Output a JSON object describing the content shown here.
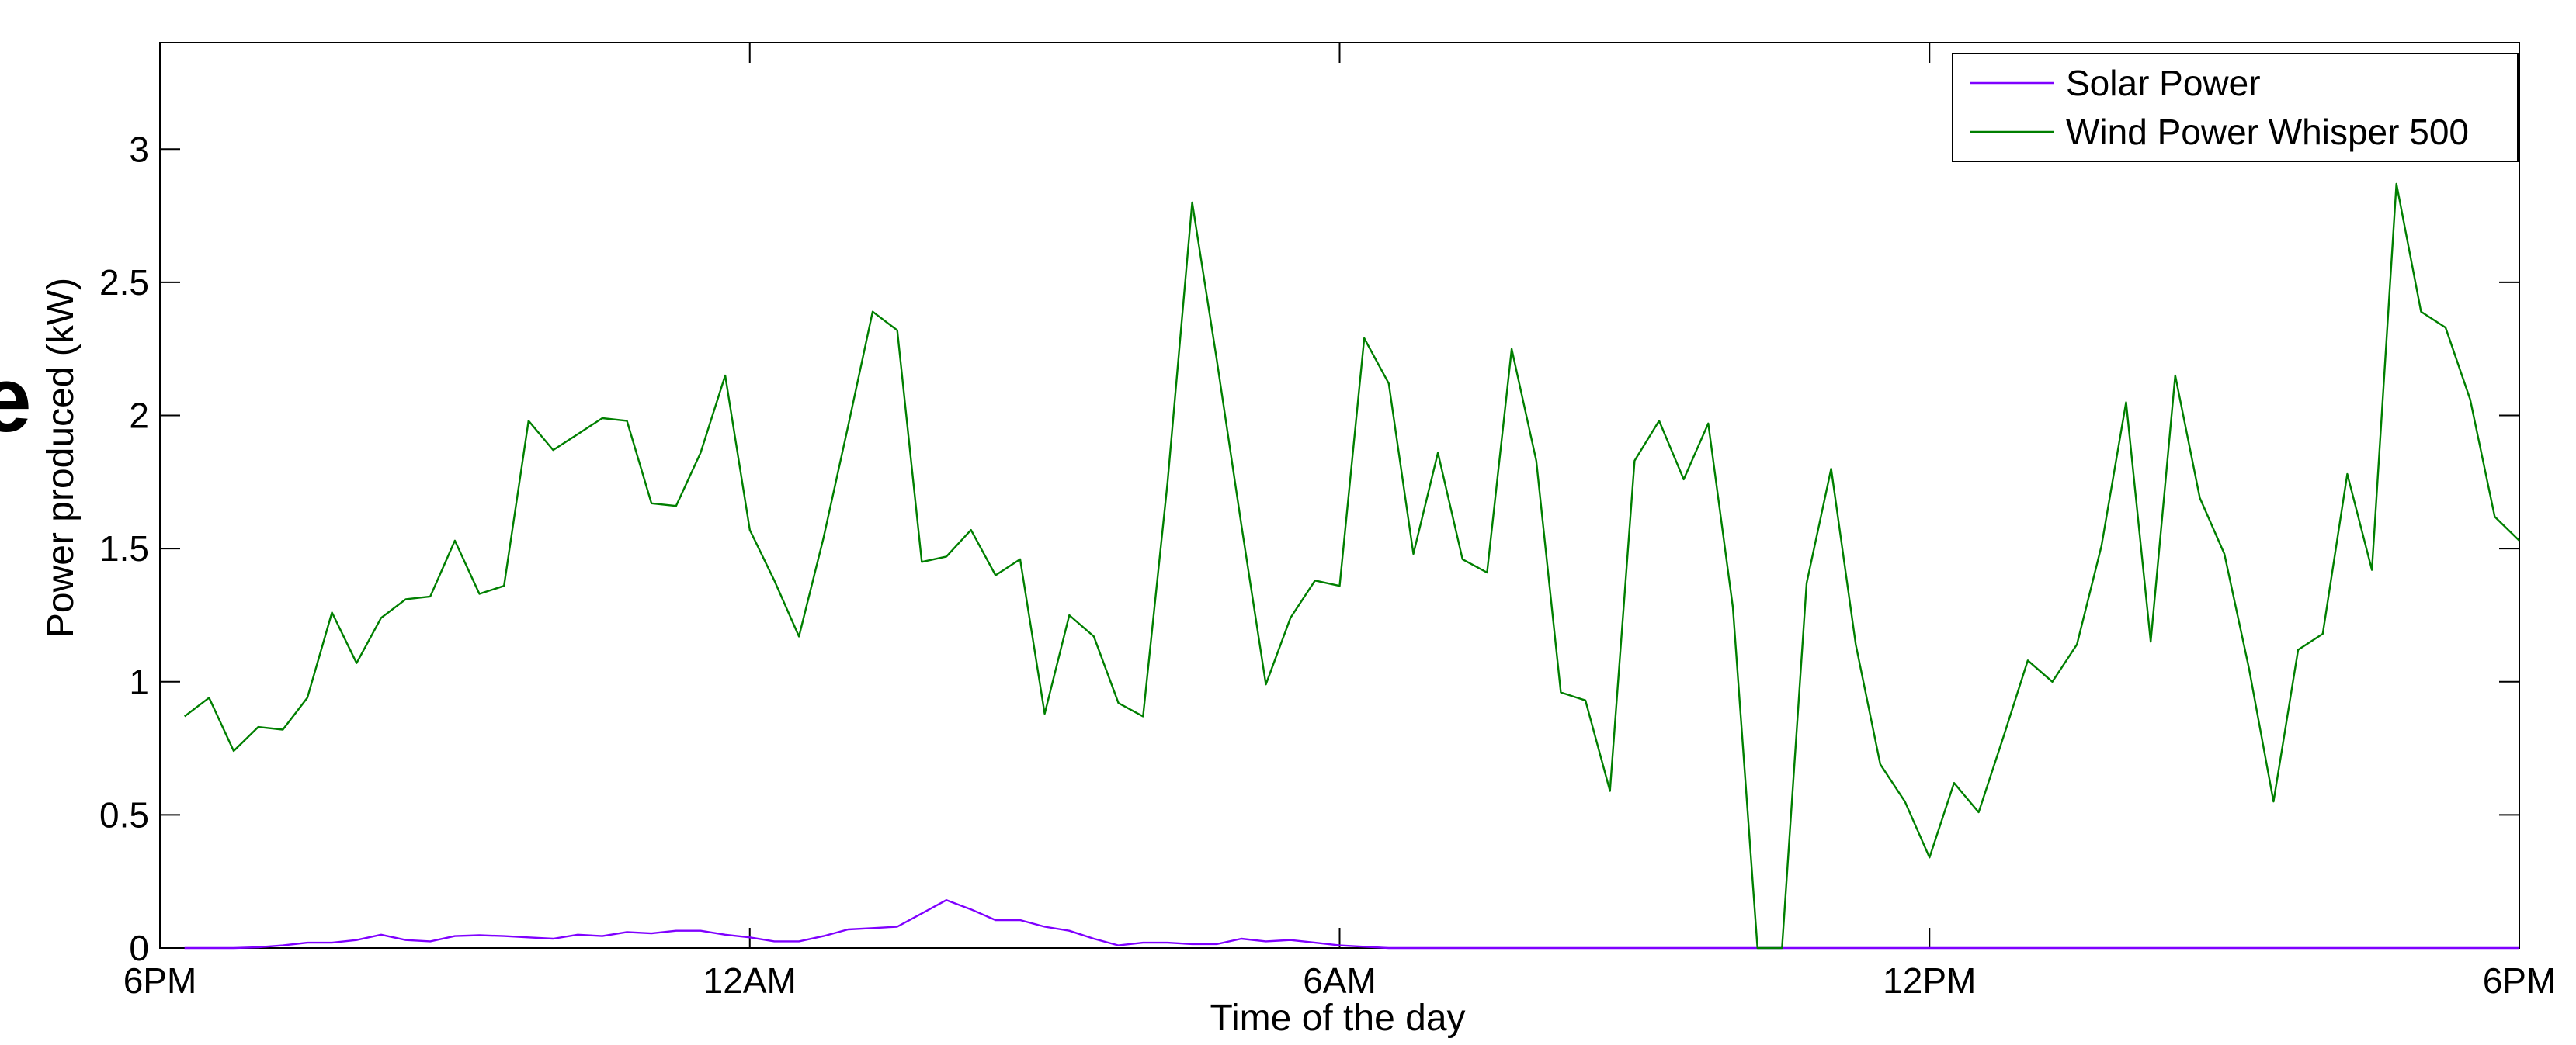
{
  "edge_text": "e",
  "chart_data": {
    "type": "line",
    "title": "",
    "xlabel": "Time of the day",
    "ylabel": "Power produced (kW)",
    "xlim": [
      0,
      96
    ],
    "ylim": [
      0,
      3.4
    ],
    "x_ticks": [
      {
        "value": 0,
        "label": "6PM"
      },
      {
        "value": 24,
        "label": "12AM"
      },
      {
        "value": 48,
        "label": "6AM"
      },
      {
        "value": 72,
        "label": "12PM"
      },
      {
        "value": 96,
        "label": "6PM"
      }
    ],
    "y_ticks": [
      {
        "value": 0,
        "label": "0"
      },
      {
        "value": 0.5,
        "label": "0.5"
      },
      {
        "value": 1,
        "label": "1"
      },
      {
        "value": 1.5,
        "label": "1.5"
      },
      {
        "value": 2,
        "label": "2"
      },
      {
        "value": 2.5,
        "label": "2.5"
      },
      {
        "value": 3,
        "label": "3"
      }
    ],
    "grid": false,
    "legend_position": "top-right",
    "series": [
      {
        "name": "Solar Power",
        "color": "#7f00ff",
        "values": [
          [
            1,
            0
          ],
          [
            2,
            0
          ],
          [
            3,
            0
          ],
          [
            4,
            0.003
          ],
          [
            5,
            0.01
          ],
          [
            6,
            0.02
          ],
          [
            7,
            0.02
          ],
          [
            8,
            0.03
          ],
          [
            9,
            0.05
          ],
          [
            10,
            0.03
          ],
          [
            11,
            0.025
          ],
          [
            12,
            0.045
          ],
          [
            13,
            0.048
          ],
          [
            14,
            0.045
          ],
          [
            15,
            0.04
          ],
          [
            16,
            0.035
          ],
          [
            17,
            0.05
          ],
          [
            18,
            0.045
          ],
          [
            19,
            0.06
          ],
          [
            20,
            0.055
          ],
          [
            21,
            0.065
          ],
          [
            22,
            0.065
          ],
          [
            23,
            0.05
          ],
          [
            24,
            0.04
          ],
          [
            25,
            0.025
          ],
          [
            26,
            0.025
          ],
          [
            27,
            0.045
          ],
          [
            28,
            0.07
          ],
          [
            29,
            0.075
          ],
          [
            30,
            0.08
          ],
          [
            31,
            0.13
          ],
          [
            32,
            0.18
          ],
          [
            33,
            0.145
          ],
          [
            34,
            0.105
          ],
          [
            35,
            0.105
          ],
          [
            36,
            0.08
          ],
          [
            37,
            0.065
          ],
          [
            38,
            0.035
          ],
          [
            39,
            0.01
          ],
          [
            40,
            0.02
          ],
          [
            41,
            0.02
          ],
          [
            42,
            0.015
          ],
          [
            43,
            0.015
          ],
          [
            44,
            0.035
          ],
          [
            45,
            0.025
          ],
          [
            46,
            0.03
          ],
          [
            47,
            0.02
          ],
          [
            48,
            0.01
          ],
          [
            49,
            0.005
          ],
          [
            50,
            0
          ],
          [
            52,
            0
          ],
          [
            56,
            0
          ],
          [
            60,
            0
          ],
          [
            64,
            0
          ],
          [
            68,
            0
          ],
          [
            72,
            0
          ],
          [
            76,
            0
          ],
          [
            80,
            0
          ],
          [
            84,
            0
          ],
          [
            88,
            0
          ],
          [
            92,
            0
          ],
          [
            96,
            0
          ]
        ]
      },
      {
        "name": "Wind Power Whisper 500",
        "color": "#007f00",
        "values": [
          [
            1,
            0.87
          ],
          [
            2,
            0.94
          ],
          [
            3,
            0.74
          ],
          [
            4,
            0.83
          ],
          [
            5,
            0.82
          ],
          [
            6,
            0.94
          ],
          [
            7,
            1.26
          ],
          [
            8,
            1.07
          ],
          [
            9,
            1.24
          ],
          [
            10,
            1.31
          ],
          [
            11,
            1.32
          ],
          [
            12,
            1.53
          ],
          [
            13,
            1.33
          ],
          [
            14,
            1.36
          ],
          [
            15,
            1.98
          ],
          [
            16,
            1.87
          ],
          [
            17,
            1.93
          ],
          [
            18,
            1.99
          ],
          [
            19,
            1.98
          ],
          [
            20,
            1.67
          ],
          [
            21,
            1.66
          ],
          [
            22,
            1.86
          ],
          [
            23,
            2.15
          ],
          [
            24,
            1.57
          ],
          [
            25,
            1.38
          ],
          [
            26,
            1.17
          ],
          [
            27,
            1.54
          ],
          [
            28,
            1.96
          ],
          [
            29,
            2.39
          ],
          [
            30,
            2.32
          ],
          [
            31,
            1.45
          ],
          [
            32,
            1.47
          ],
          [
            33,
            1.57
          ],
          [
            34,
            1.4
          ],
          [
            35,
            1.46
          ],
          [
            36,
            0.88
          ],
          [
            37,
            1.25
          ],
          [
            38,
            1.17
          ],
          [
            39,
            0.92
          ],
          [
            40,
            0.87
          ],
          [
            41,
            1.75
          ],
          [
            42,
            2.8
          ],
          [
            43,
            2.21
          ],
          [
            44,
            1.59
          ],
          [
            45,
            0.99
          ],
          [
            46,
            1.24
          ],
          [
            47,
            1.38
          ],
          [
            48,
            1.36
          ],
          [
            49,
            2.29
          ],
          [
            50,
            2.12
          ],
          [
            51,
            1.48
          ],
          [
            52,
            1.86
          ],
          [
            53,
            1.46
          ],
          [
            54,
            1.41
          ],
          [
            55,
            2.25
          ],
          [
            56,
            1.83
          ],
          [
            57,
            0.96
          ],
          [
            58,
            0.93
          ],
          [
            59,
            0.59
          ],
          [
            60,
            1.83
          ],
          [
            61,
            1.98
          ],
          [
            62,
            1.76
          ],
          [
            63,
            1.97
          ],
          [
            64,
            1.28
          ],
          [
            65,
            0.0
          ],
          [
            66,
            0.0
          ],
          [
            67,
            1.37
          ],
          [
            68,
            1.8
          ],
          [
            69,
            1.14
          ],
          [
            70,
            0.69
          ],
          [
            71,
            0.55
          ],
          [
            72,
            0.34
          ],
          [
            73,
            0.62
          ],
          [
            74,
            0.51
          ],
          [
            75,
            0.79
          ],
          [
            76,
            1.08
          ],
          [
            77,
            1.0
          ],
          [
            78,
            1.14
          ],
          [
            79,
            1.51
          ],
          [
            80,
            2.05
          ],
          [
            81,
            1.15
          ],
          [
            82,
            2.15
          ],
          [
            83,
            1.69
          ],
          [
            84,
            1.48
          ],
          [
            85,
            1.05
          ],
          [
            86,
            0.55
          ],
          [
            87,
            1.12
          ],
          [
            88,
            1.18
          ],
          [
            89,
            1.78
          ],
          [
            90,
            1.42
          ],
          [
            91,
            2.87
          ],
          [
            92,
            2.39
          ],
          [
            93,
            2.33
          ],
          [
            94,
            2.06
          ],
          [
            95,
            1.62
          ],
          [
            96,
            1.53
          ]
        ]
      }
    ]
  }
}
